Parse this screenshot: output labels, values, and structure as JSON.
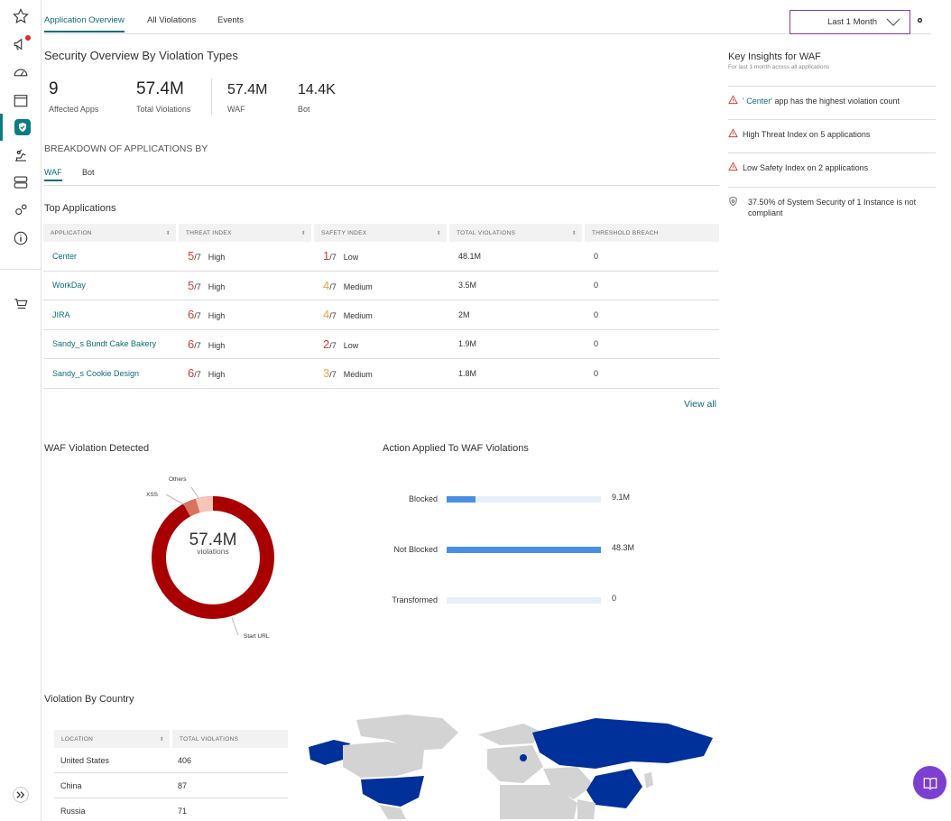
{
  "sidebar": {
    "items": [
      {
        "icon": "star-icon"
      },
      {
        "icon": "megaphone-icon"
      },
      {
        "icon": "dashboard-gauge-icon"
      },
      {
        "icon": "calendar-icon"
      },
      {
        "icon": "shield-check-icon"
      },
      {
        "icon": "robot-arm-icon"
      },
      {
        "icon": "server-icon"
      },
      {
        "icon": "gears-icon"
      },
      {
        "icon": "info-icon"
      },
      {
        "icon": "cart-icon"
      }
    ],
    "expand_icon": "double-chevron-right-icon"
  },
  "tabs": [
    "Application Overview",
    "All Violations",
    "Events"
  ],
  "period": {
    "value": "Last 1 Month"
  },
  "overview": {
    "title": "Security Overview By Violation Types",
    "stats": [
      {
        "value": "9",
        "label": "Affected Apps"
      },
      {
        "value": "57.4M",
        "label": "Total Violations"
      },
      {
        "value": "57.4M",
        "label": "WAF"
      },
      {
        "value": "14.4K",
        "label": "Bot"
      }
    ]
  },
  "breakdown": {
    "title": "BREAKDOWN OF APPLICATIONS BY",
    "tabs": [
      "WAF",
      "Bot"
    ]
  },
  "top_apps": {
    "title": "Top Applications",
    "columns": [
      "APPLICATION",
      "THREAT INDEX",
      "SAFETY INDEX",
      "TOTAL VIOLATIONS",
      "THRESHOLD BREACH"
    ],
    "rows": [
      {
        "name": "Center",
        "threat": "5",
        "threat_den": "/7",
        "threat_lvl": "High",
        "safety": "1",
        "safety_den": "/7",
        "safety_lvl": "Low",
        "violations": "48.1M",
        "breach": "0"
      },
      {
        "name": "WorkDay",
        "threat": "5",
        "threat_den": "/7",
        "threat_lvl": "High",
        "safety": "4",
        "safety_den": "/7",
        "safety_lvl": "Medium",
        "violations": "3.5M",
        "breach": "0"
      },
      {
        "name": "JIRA",
        "threat": "6",
        "threat_den": "/7",
        "threat_lvl": "High",
        "safety": "4",
        "safety_den": "/7",
        "safety_lvl": "Medium",
        "violations": "2M",
        "breach": "0"
      },
      {
        "name": "Sandy_s Bundt Cake Bakery",
        "threat": "6",
        "threat_den": "/7",
        "threat_lvl": "High",
        "safety": "2",
        "safety_den": "/7",
        "safety_lvl": "Low",
        "violations": "1.9M",
        "breach": "0"
      },
      {
        "name": "Sandy_s Cookie Design",
        "threat": "6",
        "threat_den": "/7",
        "threat_lvl": "High",
        "safety": "3",
        "safety_den": "/7",
        "safety_lvl": "Medium",
        "violations": "1.8M",
        "breach": "0"
      }
    ],
    "view_all": "View all"
  },
  "insights": {
    "title": "Key Insights for WAF",
    "subtitle": "For last 1 month across all applications",
    "items": [
      {
        "highlight": "' Center'",
        "text": " app has the highest violation count"
      },
      {
        "highlight": "",
        "text": "High Threat Index on 5 applications"
      },
      {
        "highlight": "",
        "text": "Low Safety Index on 2 applications"
      },
      {
        "highlight": "",
        "text": "37.50% of System Security of 1 Instance is not compliant"
      }
    ]
  },
  "waf_detected": {
    "title": "WAF Violation Detected",
    "center_value": "57.4M",
    "center_label": "violations",
    "labels": {
      "others": "Others",
      "xss": "XSS",
      "start_url": "Start URL"
    }
  },
  "chart_data": {
    "type": "bar",
    "title": "Action Applied To WAF Violations",
    "orientation": "horizontal",
    "categories": [
      "Blocked",
      "Not Blocked",
      "Transformed"
    ],
    "values": [
      9.1,
      48.3,
      0
    ],
    "value_labels": [
      "9.1M",
      "48.3M",
      "0"
    ],
    "unit": "M",
    "xlim": [
      0,
      48.3
    ],
    "colors": {
      "bar": "#4a90e2",
      "track": "#e8eef8"
    }
  },
  "country": {
    "title": "Violation By Country",
    "columns": [
      "LOCATION",
      "TOTAL VIOLATIONS"
    ],
    "rows": [
      {
        "location": "United States",
        "violations": "406"
      },
      {
        "location": "China",
        "violations": "87"
      },
      {
        "location": "Russia",
        "violations": "71"
      }
    ]
  },
  "colors": {
    "accent": "#0c6d79",
    "danger": "#d73c32",
    "warning": "#f0a340",
    "map_highlight": "#00309a",
    "donut_main": "#a80000",
    "fab": "#7c3fd1"
  }
}
